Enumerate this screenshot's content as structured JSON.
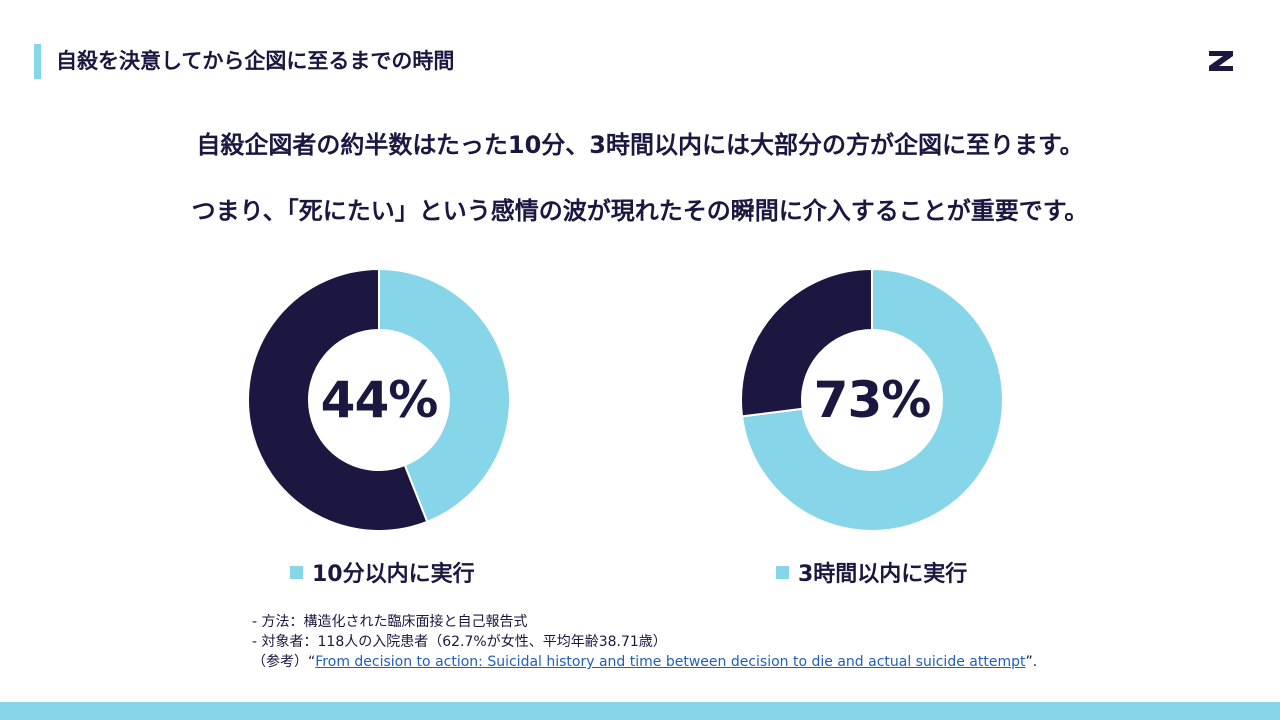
{
  "header": {
    "title": "自殺を決意してから企図に至るまでの時間"
  },
  "headline": {
    "line1": "自殺企図者の約半数はたった10分、3時間以内には大部分の方が企図に至ります。",
    "line2": "つまり、「死にたい」という感情の波が現れたその瞬間に介入することが重要です。"
  },
  "colors": {
    "dark_navy": "#1c1740",
    "light_blue": "#86d5e8"
  },
  "chart_data": [
    {
      "type": "pie",
      "center_label": "44%",
      "legend": "10分以内に実行",
      "slices": [
        {
          "name": "10分以内に実行",
          "value": 44,
          "color": "#86d5e8"
        },
        {
          "name": "",
          "value": 56,
          "color": "#1c1740"
        }
      ]
    },
    {
      "type": "pie",
      "center_label": "73%",
      "legend": "3時間以内に実行",
      "slices": [
        {
          "name": "3時間以内に実行",
          "value": 73,
          "color": "#86d5e8"
        },
        {
          "name": "",
          "value": 27,
          "color": "#1c1740"
        }
      ]
    }
  ],
  "notes": {
    "method": "- 方法：構造化された臨床面接と自己報告式",
    "subjects": "- 対象者：118人の入院患者（62.7%が女性、平均年齢38.71歳）",
    "ref_prefix": "（参考）“",
    "ref_link": "From decision to action: Suicidal history and time between decision to die and actual suicide attempt",
    "ref_suffix": "”."
  }
}
